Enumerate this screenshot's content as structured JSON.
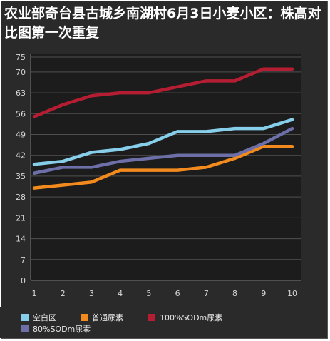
{
  "title": "农业部奇台县古城乡南湖村6月3日小麦小区：株高对比图第一次重复",
  "chart_data": {
    "type": "line",
    "title": "农业部奇台县古城乡南湖村6月3日小麦小区：株高对比图第一次重复",
    "x": [
      1,
      2,
      3,
      4,
      5,
      6,
      7,
      8,
      9,
      10
    ],
    "x_ticks": [
      "1",
      "2",
      "3",
      "4",
      "5",
      "6",
      "7",
      "8",
      "9",
      "10"
    ],
    "y_ticks": [
      "0",
      "7",
      "14",
      "21",
      "28",
      "35",
      "42",
      "49",
      "56",
      "63",
      "70",
      "75"
    ],
    "ylim": [
      0,
      75
    ],
    "grid": true,
    "legend_position": "bottom",
    "series": [
      {
        "name": "空白区",
        "color": "#87ceeb",
        "values": [
          39,
          40,
          43,
          44,
          46,
          50,
          50,
          51,
          51,
          54
        ]
      },
      {
        "name": "普通尿素",
        "color": "#f28a1e",
        "values": [
          31,
          32,
          33,
          37,
          37,
          37,
          38,
          41,
          45,
          45
        ]
      },
      {
        "name": "100%SODm尿素",
        "color": "#b51e32",
        "values": [
          55,
          59,
          62,
          63,
          63,
          65,
          67,
          67,
          71,
          71
        ]
      },
      {
        "name": "80%SODm尿素",
        "color": "#6d6fa8",
        "values": [
          36,
          38,
          38,
          40,
          41,
          42,
          42,
          42,
          46,
          51
        ]
      }
    ]
  }
}
